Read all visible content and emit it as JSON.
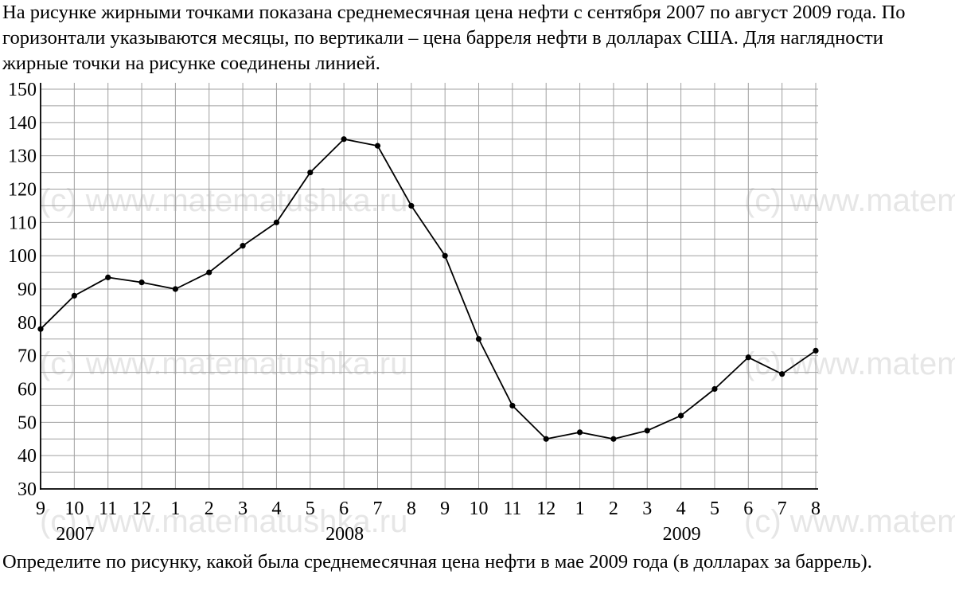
{
  "intro_text": "На рисунке жирными точками показана среднемесячная цена нефти с сентября 2007 по август 2009 года. По горизонтали указываются месяцы, по вертикали – цена барреля нефти в долларах США. Для наглядности жирные точки на рисунке соединены линией.",
  "question_text": "Определите по рисунку, какой была среднемесячная цена нефти в мае 2009 года (в долларах за баррель).",
  "watermark": "(c) www.matematushka.ru",
  "chart_data": {
    "type": "line",
    "title": "",
    "xlabel": "",
    "ylabel": "",
    "categories": [
      "9",
      "10",
      "11",
      "12",
      "1",
      "2",
      "3",
      "4",
      "5",
      "6",
      "7",
      "8",
      "9",
      "10",
      "11",
      "12",
      "1",
      "2",
      "3",
      "4",
      "5",
      "6",
      "7",
      "8"
    ],
    "year_labels": [
      {
        "label": "2007",
        "month_index": 1
      },
      {
        "label": "2008",
        "month_index": 9
      },
      {
        "label": "2009",
        "month_index": 19
      }
    ],
    "series": [
      {
        "values": [
          78,
          88,
          93.5,
          92,
          90,
          95,
          103,
          110,
          125,
          135,
          133,
          115,
          100,
          75,
          55,
          45,
          47,
          45,
          47.5,
          52,
          60,
          69.5,
          64.5,
          71.5
        ]
      }
    ],
    "ylim": [
      30,
      150
    ],
    "y_ticks": [
      30,
      40,
      50,
      60,
      70,
      80,
      90,
      100,
      110,
      120,
      130,
      140,
      150
    ],
    "y_minor_step": 5,
    "grid": true,
    "line_color": "#000000",
    "grid_color": "#a0a0a0"
  }
}
